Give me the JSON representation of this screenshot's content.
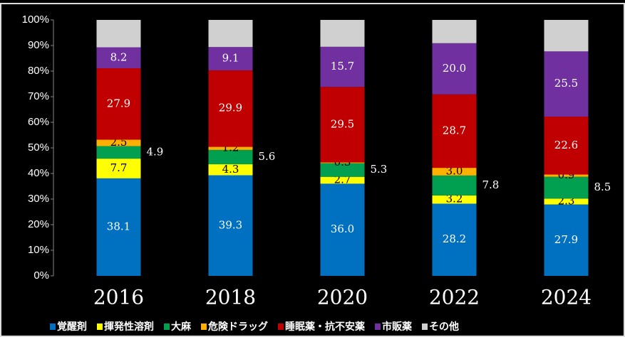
{
  "chart_data": {
    "type": "stacked_bar_100",
    "categories": [
      "2016",
      "2018",
      "2020",
      "2022",
      "2024"
    ],
    "ylim": [
      0,
      100
    ],
    "yticks": [
      {
        "value": 0,
        "label": "0%"
      },
      {
        "value": 10,
        "label": "10%"
      },
      {
        "value": 20,
        "label": "20%"
      },
      {
        "value": 30,
        "label": "30%"
      },
      {
        "value": 40,
        "label": "40%"
      },
      {
        "value": 50,
        "label": "50%"
      },
      {
        "value": 60,
        "label": "60%"
      },
      {
        "value": 70,
        "label": "70%"
      },
      {
        "value": 80,
        "label": "80%"
      },
      {
        "value": 90,
        "label": "90%"
      },
      {
        "value": 100,
        "label": "100%"
      }
    ],
    "series": [
      {
        "name": "覚醒剤",
        "color": "#0070c0",
        "label_color": "#ffffff",
        "label_position": "center",
        "values": [
          38.1,
          39.3,
          36.0,
          28.2,
          27.9
        ],
        "value_labels": [
          "38.1",
          "39.3",
          "36.0",
          "28.2",
          "27.9"
        ]
      },
      {
        "name": "揮発性溶剤",
        "color": "#ffff00",
        "label_color": "#000000",
        "label_position": "center",
        "values": [
          7.7,
          4.3,
          2.7,
          3.2,
          2.3
        ],
        "value_labels": [
          "7.7",
          "4.3",
          "2.7",
          "3.2",
          "2.3"
        ]
      },
      {
        "name": "大麻",
        "color": "#00a050",
        "label_color": "#ffffff",
        "label_position": "right",
        "values": [
          4.9,
          5.6,
          5.3,
          7.8,
          8.5
        ],
        "value_labels": [
          "4.9",
          "5.6",
          "5.3",
          "7.8",
          "8.5"
        ]
      },
      {
        "name": "危険ドラッグ",
        "color": "#ffb000",
        "label_color": "#000000",
        "label_position": "center",
        "values": [
          2.5,
          1.2,
          0.3,
          3.0,
          0.9
        ],
        "value_labels": [
          "2.5",
          "1.2",
          "0.3",
          "3.0",
          "0.9"
        ]
      },
      {
        "name": "睡眠薬・抗不安薬",
        "color": "#c00000",
        "label_color": "#ffffff",
        "label_position": "center",
        "values": [
          27.9,
          29.9,
          29.5,
          28.7,
          22.6
        ],
        "value_labels": [
          "27.9",
          "29.9",
          "29.5",
          "28.7",
          "22.6"
        ]
      },
      {
        "name": "市販薬",
        "color": "#7030a0",
        "label_color": "#ffffff",
        "label_position": "center",
        "values": [
          8.2,
          9.1,
          15.7,
          20.0,
          25.5
        ],
        "value_labels": [
          "8.2",
          "9.1",
          "15.7",
          "20.0",
          "25.5"
        ]
      },
      {
        "name": "その他",
        "color": "#d0d0d0",
        "values": [
          10.7,
          10.6,
          10.5,
          9.1,
          12.3
        ]
      }
    ]
  }
}
